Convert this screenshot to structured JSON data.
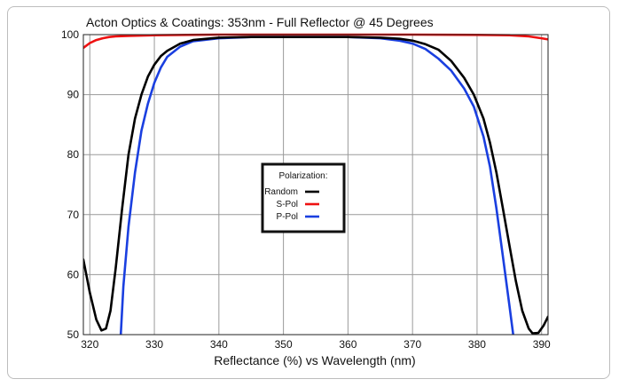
{
  "chart_data": {
    "type": "line",
    "title": "Acton Optics & Coatings:  353nm - Full Reflector @ 45 Degrees",
    "xlabel": "Reflectance (%)  vs  Wavelength (nm)",
    "ylabel": "",
    "xlim": [
      319,
      391
    ],
    "ylim": [
      50,
      100
    ],
    "xticks": [
      320,
      330,
      340,
      350,
      360,
      370,
      380,
      390
    ],
    "yticks": [
      50,
      60,
      70,
      80,
      90,
      100
    ],
    "grid": true,
    "legend": {
      "title": "Polarization:",
      "placement": "center",
      "entries": [
        "Random",
        "S-Pol",
        "P-Pol"
      ]
    },
    "series": [
      {
        "name": "Random",
        "color": "#000000",
        "x": [
          319,
          320,
          321,
          321.8,
          322.5,
          323.2,
          324,
          325,
          326,
          327,
          328,
          329,
          330,
          331,
          332,
          334,
          336,
          340,
          345,
          350,
          355,
          360,
          365,
          368,
          370,
          372,
          374,
          376,
          378,
          379.5,
          381,
          382,
          383,
          384,
          385,
          386,
          387,
          388,
          388.6,
          389.5,
          390.3,
          391
        ],
        "y": [
          62.5,
          57,
          52.5,
          50.7,
          51,
          54,
          61,
          71,
          80,
          86,
          90,
          93,
          95,
          96.4,
          97.3,
          98.5,
          99.1,
          99.5,
          99.6,
          99.6,
          99.6,
          99.6,
          99.5,
          99.3,
          99,
          98.4,
          97.5,
          95.6,
          92.8,
          90,
          86,
          82,
          77,
          71,
          65,
          59,
          54,
          51,
          50.2,
          50.3,
          51.5,
          53
        ]
      },
      {
        "name": "S-Pol",
        "color": "#ee1111",
        "x": [
          319,
          320,
          321,
          322,
          323,
          324,
          326,
          330,
          335,
          340,
          350,
          360,
          370,
          380,
          385,
          388,
          390,
          391
        ],
        "y": [
          97.8,
          98.6,
          99.1,
          99.4,
          99.6,
          99.7,
          99.8,
          99.9,
          99.95,
          100,
          100,
          100,
          100,
          99.95,
          99.9,
          99.7,
          99.4,
          99.2
        ]
      },
      {
        "name": "P-Pol",
        "color": "#1a3fe0",
        "x": [
          324.8,
          325.2,
          326,
          327,
          328,
          329,
          330,
          331,
          332,
          334,
          336,
          340,
          345,
          350,
          355,
          360,
          365,
          368,
          370,
          372,
          374,
          376,
          378,
          379.5,
          381,
          382,
          383,
          384,
          385,
          385.6
        ],
        "y": [
          50,
          58,
          68,
          77,
          84,
          88.5,
          92,
          94.5,
          96.3,
          98,
          98.9,
          99.4,
          99.6,
          99.6,
          99.6,
          99.6,
          99.4,
          99,
          98.5,
          97.6,
          96,
          94,
          91,
          88,
          83,
          78,
          71,
          63,
          55,
          50
        ]
      }
    ]
  }
}
